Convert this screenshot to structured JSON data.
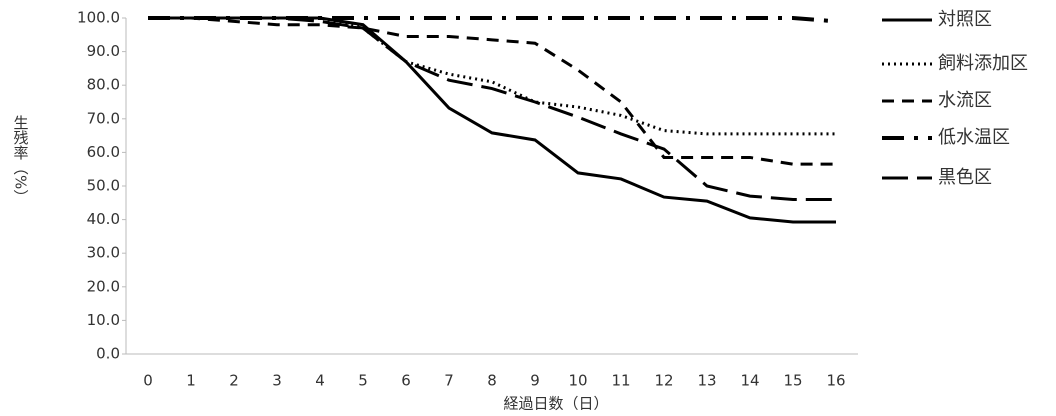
{
  "chart_data": {
    "type": "line",
    "x_label": "経過日数（日）",
    "y_label": "生残率（%）",
    "categories": [
      "0",
      "1",
      "2",
      "3",
      "4",
      "5",
      "6",
      "7",
      "8",
      "9",
      "10",
      "11",
      "12",
      "13",
      "14",
      "15",
      "16"
    ],
    "ylim": [
      0,
      100
    ],
    "yticks": [
      {
        "value": 0,
        "label": "0.0"
      },
      {
        "value": 10,
        "label": "10.0"
      },
      {
        "value": 20,
        "label": "20.0"
      },
      {
        "value": 30,
        "label": "30.0"
      },
      {
        "value": 40,
        "label": "40.0"
      },
      {
        "value": 50,
        "label": "50.0"
      },
      {
        "value": 60,
        "label": "60.0"
      },
      {
        "value": 70,
        "label": "70.0"
      },
      {
        "value": 80,
        "label": "80.0"
      },
      {
        "value": 90,
        "label": "90.0"
      },
      {
        "value": 100,
        "label": "100.0"
      }
    ],
    "grid": false,
    "legend": "right",
    "series": [
      {
        "name": "対照区",
        "color": "#000000",
        "values": [
          100,
          100,
          100,
          100,
          100,
          98,
          87,
          73.2,
          65.8,
          63.7,
          53.9,
          52.1,
          46.7,
          45.5,
          40.5,
          39.3,
          39.3
        ]
      },
      {
        "name": "飼料添加区",
        "color": "#000000",
        "values": [
          100,
          100,
          100,
          100,
          100,
          97,
          87,
          83.3,
          81,
          75,
          73.5,
          71,
          66.5,
          65.5,
          65.5,
          65.5,
          65.5
        ]
      },
      {
        "name": "水流区",
        "color": "#000000",
        "values": [
          100,
          100,
          99,
          98,
          98,
          97,
          94.5,
          94.5,
          93.5,
          92.5,
          84.5,
          75,
          58.5,
          58.5,
          58.5,
          56.5,
          56.5
        ]
      },
      {
        "name": "低水温区",
        "color": "#000000",
        "values": [
          100,
          100,
          100,
          100,
          100,
          100,
          100,
          100,
          100,
          100,
          100,
          100,
          100,
          100,
          100,
          100,
          99
        ]
      },
      {
        "name": "黒色区",
        "color": "#000000",
        "values": [
          100,
          100,
          100,
          100,
          99,
          97,
          87,
          81.5,
          79,
          75,
          70.5,
          65.5,
          61,
          50,
          47,
          46,
          46
        ]
      }
    ]
  }
}
